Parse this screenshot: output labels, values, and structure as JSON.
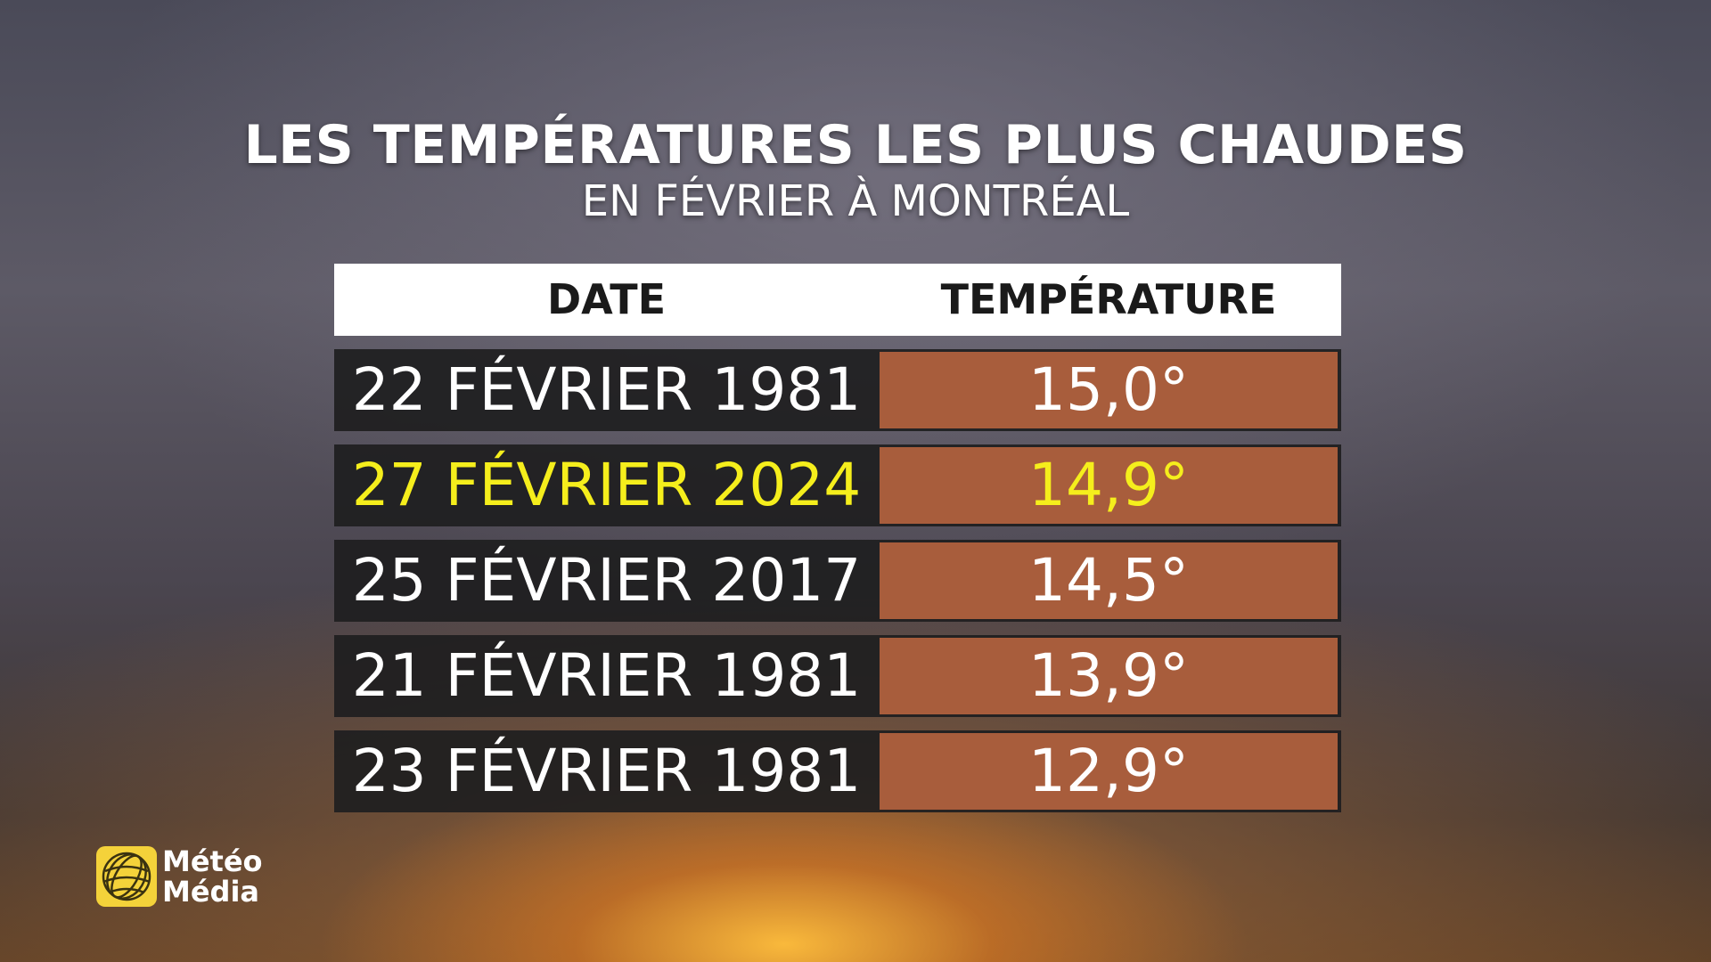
{
  "title": "LES TEMPÉRATURES LES PLUS CHAUDES",
  "subtitle": "EN FÉVRIER À MONTRÉAL",
  "table": {
    "columns": [
      "DATE",
      "TEMPÉRATURE"
    ],
    "rows": [
      {
        "date": "22 FÉVRIER 1981",
        "temperature": "15,0°",
        "color": "#ffffff"
      },
      {
        "date": "27 FÉVRIER 2024",
        "temperature": "14,9°",
        "color": "#f5ee1c"
      },
      {
        "date": "25 FÉVRIER 2017",
        "temperature": "14,5°",
        "color": "#ffffff"
      },
      {
        "date": "21 FÉVRIER 1981",
        "temperature": "13,9°",
        "color": "#ffffff"
      },
      {
        "date": "23 FÉVRIER 1981",
        "temperature": "12,9°",
        "color": "#ffffff"
      }
    ]
  },
  "logo": {
    "line1": "Météo",
    "line2": "Média"
  }
}
